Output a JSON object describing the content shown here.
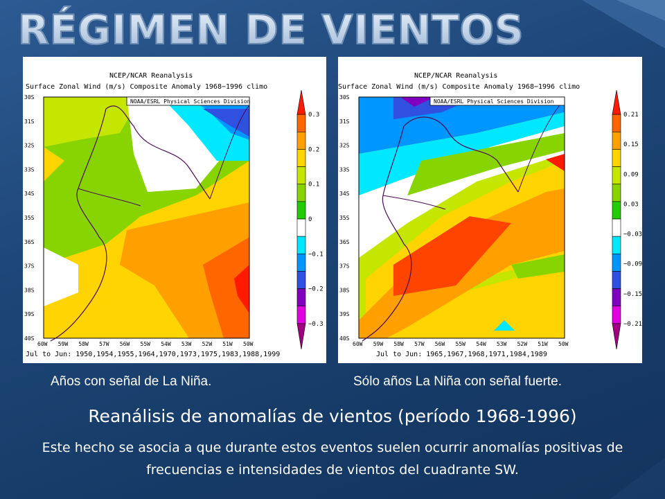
{
  "slide": {
    "title": "RÉGIMEN DE VIENTOS",
    "subtitle": "Reanálisis de anomalías de vientos  (período 1968-1996)",
    "body": "Este hecho se asocia a que durante estos eventos suelen ocurrir anomalías positivas de frecuencias e intensidades de vientos del cuadrante SW."
  },
  "map_left": {
    "header1": "NCEP/NCAR Reanalysis",
    "header2": "Surface Zonal Wind (m/s) Composite Anomaly 1968−1996 climo",
    "credit": "NOAA/ESRL Physical Sciences Division",
    "footer": "Jul to Jun: 1950,1954,1955,1964,1970,1973,1975,1983,1988,1999",
    "caption": "Años con señal de La Niña.",
    "colorbar_labels": [
      "0.3",
      "0.2",
      "0.1",
      "0",
      "−0.1",
      "−0.2",
      "−0.3"
    ]
  },
  "map_right": {
    "header1": "NCEP/NCAR Reanalysis",
    "header2": "Surface Zonal Wind (m/s) Composite Anomaly 1968−1996 climo",
    "credit": "NOAA/ESRL Physical Sciences Division",
    "footer": "Jul to Jun: 1965,1967,1968,1971,1984,1989",
    "caption": "Sólo años La Niña con señal fuerte.",
    "colorbar_labels": [
      "0.21",
      "0.15",
      "0.09",
      "0.03",
      "−0.03",
      "−0.09",
      "−0.15",
      "−0.21"
    ]
  },
  "axes": {
    "lat_ticks": [
      "30S",
      "31S",
      "32S",
      "33S",
      "34S",
      "35S",
      "36S",
      "37S",
      "38S",
      "39S",
      "40S"
    ],
    "lon_ticks": [
      "60W",
      "59W",
      "58W",
      "57W",
      "56W",
      "55W",
      "54W",
      "53W",
      "52W",
      "51W",
      "50W"
    ]
  }
}
